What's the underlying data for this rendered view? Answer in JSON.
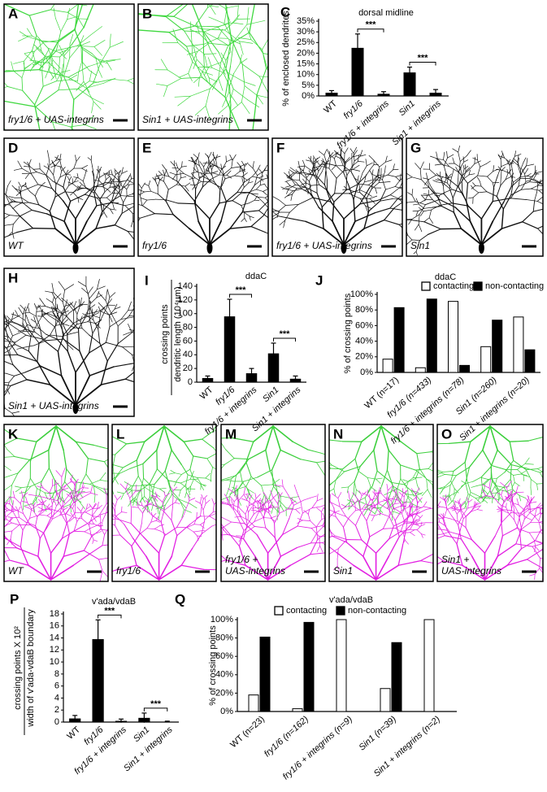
{
  "panels": [
    {
      "label": "A",
      "caption": [
        "fry1/6 + UAS-integrins"
      ]
    },
    {
      "label": "B",
      "caption": [
        "Sin1 + UAS-integrins"
      ]
    },
    {
      "label": "D",
      "caption": [
        "WT"
      ]
    },
    {
      "label": "E",
      "caption": [
        "fry1/6"
      ]
    },
    {
      "label": "F",
      "caption": [
        "fry1/6 + UAS-integrins"
      ]
    },
    {
      "label": "G",
      "caption": [
        "Sin1"
      ]
    },
    {
      "label": "H",
      "caption": [
        "Sin1 + UAS-integrins"
      ]
    },
    {
      "label": "K",
      "caption": [
        "WT"
      ]
    },
    {
      "label": "L",
      "caption": [
        "fry1/6"
      ]
    },
    {
      "label": "M",
      "caption": [
        "fry1/6 +",
        "UAS-integrins"
      ]
    },
    {
      "label": "N",
      "caption": [
        "Sin1"
      ]
    },
    {
      "label": "O",
      "caption": [
        "Sin1 +",
        "UAS-integrins"
      ]
    }
  ],
  "chart_data": [
    {
      "type": "bar",
      "panel": "C",
      "title": "dorsal midline",
      "ylabel": [
        "% of enclosed dendrites"
      ],
      "categories": [
        "WT",
        "fry1/6",
        "fry1/6 + integrins",
        "Sin1",
        "Sin1 + integrins"
      ],
      "values": [
        1.5,
        22.5,
        1,
        11,
        1.5
      ],
      "errors": [
        1,
        6.5,
        1,
        2.5,
        1.5
      ],
      "color": "#000000",
      "ylim": [
        0,
        35
      ],
      "yticks": [
        {
          "value": 0,
          "label": "0%"
        },
        {
          "value": 5,
          "label": "5%"
        },
        {
          "value": 10,
          "label": "10%"
        },
        {
          "value": 15,
          "label": "15%"
        },
        {
          "value": 20,
          "label": "20%"
        },
        {
          "value": 25,
          "label": "25%"
        },
        {
          "value": 30,
          "label": "30%"
        },
        {
          "value": 35,
          "label": "35%"
        }
      ],
      "annotations": [
        {
          "label": "***",
          "between": [
            1,
            2
          ]
        },
        {
          "label": "***",
          "between": [
            3,
            4
          ]
        }
      ]
    },
    {
      "type": "bar",
      "panel": "I",
      "title": "ddaC",
      "ylabel": [
        "crossing points",
        "dendritic length (10⁴μm)"
      ],
      "categories": [
        "WT",
        "fry1/6",
        "fry1/6 + integrins",
        "Sin1",
        "Sin1 + integrins"
      ],
      "values": [
        6,
        96,
        13,
        42,
        5
      ],
      "errors": [
        3,
        25,
        7,
        15,
        4
      ],
      "color": "#000000",
      "ylim": [
        0,
        140
      ],
      "yticks": [
        0,
        20,
        40,
        60,
        80,
        100,
        120,
        140
      ],
      "annotations": [
        {
          "label": "***",
          "between": [
            1,
            2
          ]
        },
        {
          "label": "***",
          "between": [
            3,
            4
          ]
        }
      ]
    },
    {
      "type": "grouped_bar",
      "panel": "J",
      "title": "ddaC",
      "ylabel": [
        "% of crossing points"
      ],
      "categories": [
        "WT (n=17)",
        "fry1/6 (n=433)",
        "fry1/6 + integrins (n=78)",
        "Sin1 (n=260)",
        "Sin1 + integrins (n=20)"
      ],
      "series": [
        {
          "name": "contacting",
          "color": "#ffffff",
          "values": [
            17,
            6,
            91,
            33,
            71
          ]
        },
        {
          "name": "non-contacting",
          "color": "#000000",
          "values": [
            83,
            94,
            9,
            67,
            29
          ]
        }
      ],
      "ylim": [
        0,
        100
      ],
      "yticks": [
        {
          "value": 0,
          "label": "0%"
        },
        {
          "value": 20,
          "label": "20%"
        },
        {
          "value": 40,
          "label": "40%"
        },
        {
          "value": 60,
          "label": "60%"
        },
        {
          "value": 80,
          "label": "80%"
        },
        {
          "value": 100,
          "label": "100%"
        }
      ]
    },
    {
      "type": "bar",
      "panel": "P",
      "title": "v'ada/vdaB",
      "ylabel": [
        "crossing points X 10²",
        "width of v'ada-vdaB boundary"
      ],
      "categories": [
        "WT",
        "fry1/6",
        "fry1/6 + integrins",
        "Sin1",
        "Sin1 + integrins"
      ],
      "values": [
        0.6,
        13.8,
        0.2,
        0.7,
        0.05
      ],
      "errors": [
        0.5,
        3.2,
        0.3,
        0.8,
        0.1
      ],
      "color": "#000000",
      "ylim": [
        0,
        18
      ],
      "yticks": [
        0,
        2,
        4,
        6,
        8,
        10,
        12,
        14,
        16,
        18
      ],
      "annotations": [
        {
          "label": "***",
          "between": [
            1,
            2
          ]
        },
        {
          "label": "***",
          "between": [
            3,
            4
          ]
        }
      ]
    },
    {
      "type": "grouped_bar",
      "panel": "Q",
      "title": "v'ada/vdaB",
      "ylabel": [
        "% of crossing points"
      ],
      "categories": [
        "WT (n=23)",
        "fry1/6 (n=162)",
        "fry1/6 + integrins (n=9)",
        "Sin1 (n=39)",
        "Sin1 + integrins (n=2)"
      ],
      "series": [
        {
          "name": "contacting",
          "color": "#ffffff",
          "values": [
            18,
            3,
            100,
            25,
            100
          ]
        },
        {
          "name": "non-contacting",
          "color": "#000000",
          "values": [
            81,
            97,
            0,
            75,
            0
          ]
        }
      ],
      "ylim": [
        0,
        100
      ],
      "yticks": [
        {
          "value": 0,
          "label": "0%"
        },
        {
          "value": 20,
          "label": "20%"
        },
        {
          "value": 40,
          "label": "40%"
        },
        {
          "value": 60,
          "label": "60%"
        },
        {
          "value": 80,
          "label": "80%"
        },
        {
          "value": 100,
          "label": "100%"
        }
      ]
    }
  ]
}
